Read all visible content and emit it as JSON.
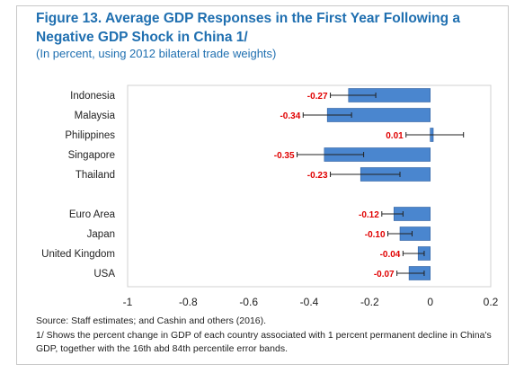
{
  "figure": {
    "title": "Figure 13. Average GDP Responses in the First Year Following a Negative GDP Shock in China 1/",
    "subtitle": "(In percent, using 2012 bilateral trade weights)",
    "source": "Source: Staff estimates; and Cashin and others (2016).",
    "note": "1/ Shows the percent change in GDP of each country associated with 1 percent permanent decline in China's GDP, together with the 16th abd 84th percentile error bands."
  },
  "chart_data": {
    "type": "bar",
    "orientation": "horizontal",
    "xlim": [
      -1,
      0.2
    ],
    "xticks": [
      -1,
      -0.8,
      -0.6,
      -0.4,
      -0.2,
      0,
      0.2
    ],
    "xtick_labels": [
      "-1",
      "-0.8",
      "-0.6",
      "-0.4",
      "-0.2",
      "0",
      "0.2"
    ],
    "bar_color": "#4a86cf",
    "label_color": "#e00000",
    "categories": [
      {
        "name": "Indonesia",
        "value": -0.27,
        "label": "-0.27",
        "err_low": -0.33,
        "err_high": -0.18,
        "group": 1
      },
      {
        "name": "Malaysia",
        "value": -0.34,
        "label": "-0.34",
        "err_low": -0.42,
        "err_high": -0.26,
        "group": 1
      },
      {
        "name": "Philippines",
        "value": 0.01,
        "label": "0.01",
        "err_low": -0.08,
        "err_high": 0.11,
        "group": 1
      },
      {
        "name": "Singapore",
        "value": -0.35,
        "label": "-0.35",
        "err_low": -0.44,
        "err_high": -0.22,
        "group": 1
      },
      {
        "name": "Thailand",
        "value": -0.23,
        "label": "-0.23",
        "err_low": -0.33,
        "err_high": -0.1,
        "group": 1
      },
      {
        "name": "Euro Area",
        "value": -0.12,
        "label": "-0.12",
        "err_low": -0.16,
        "err_high": -0.09,
        "group": 2
      },
      {
        "name": "Japan",
        "value": -0.1,
        "label": "-0.10",
        "err_low": -0.14,
        "err_high": -0.06,
        "group": 2
      },
      {
        "name": "United Kingdom",
        "value": -0.04,
        "label": "-0.04",
        "err_low": -0.09,
        "err_high": -0.02,
        "group": 2
      },
      {
        "name": "USA",
        "value": -0.07,
        "label": "-0.07",
        "err_low": -0.11,
        "err_high": -0.02,
        "group": 2
      }
    ],
    "grid": false,
    "legend": "none"
  }
}
